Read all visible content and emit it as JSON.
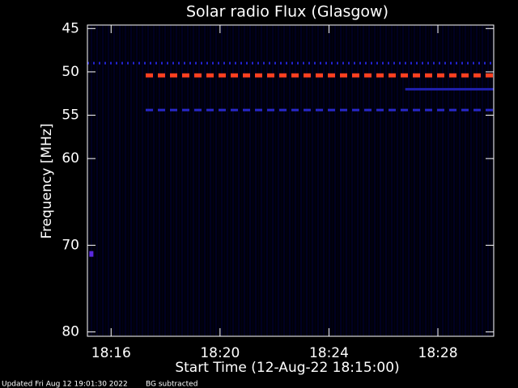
{
  "chart_data": {
    "type": "spectrogram",
    "title": "Solar radio Flux (Glasgow)",
    "y_label": "Frequency [MHz]",
    "x_label": "Start Time (12-Aug-22 18:15:00)",
    "footer": [
      "Updated Fri Aug 12 19:01:30 2022",
      "BG subtracted"
    ],
    "xlim": [
      0.13,
      15.05
    ],
    "xticks": [
      {
        "value": 1,
        "label": "18:16"
      },
      {
        "value": 5,
        "label": "18:20"
      },
      {
        "value": 9,
        "label": "18:24"
      },
      {
        "value": 13,
        "label": "18:28"
      }
    ],
    "ylim": [
      80.5,
      44.6
    ],
    "yticks": [
      45,
      50,
      55,
      60,
      70,
      80
    ],
    "bands": [
      {
        "freq": 49.0,
        "start": 0.13,
        "end": 15.05,
        "color": "#2424d8",
        "line_style": "dotted"
      },
      {
        "freq": 50.4,
        "start": 2.27,
        "end": 15.05,
        "color": "#ff4020",
        "line_style": "dashed"
      },
      {
        "freq": 52.0,
        "start": 11.8,
        "end": 15.05,
        "color": "#2020b0",
        "line_style": "solid"
      },
      {
        "freq": 54.4,
        "start": 2.27,
        "end": 15.05,
        "color": "#2828c8",
        "line_style": "dashed"
      },
      {
        "freq": 71.0,
        "start": 0.2,
        "end": 0.35,
        "color": "#5a28e0",
        "line_style": "solid"
      }
    ]
  }
}
